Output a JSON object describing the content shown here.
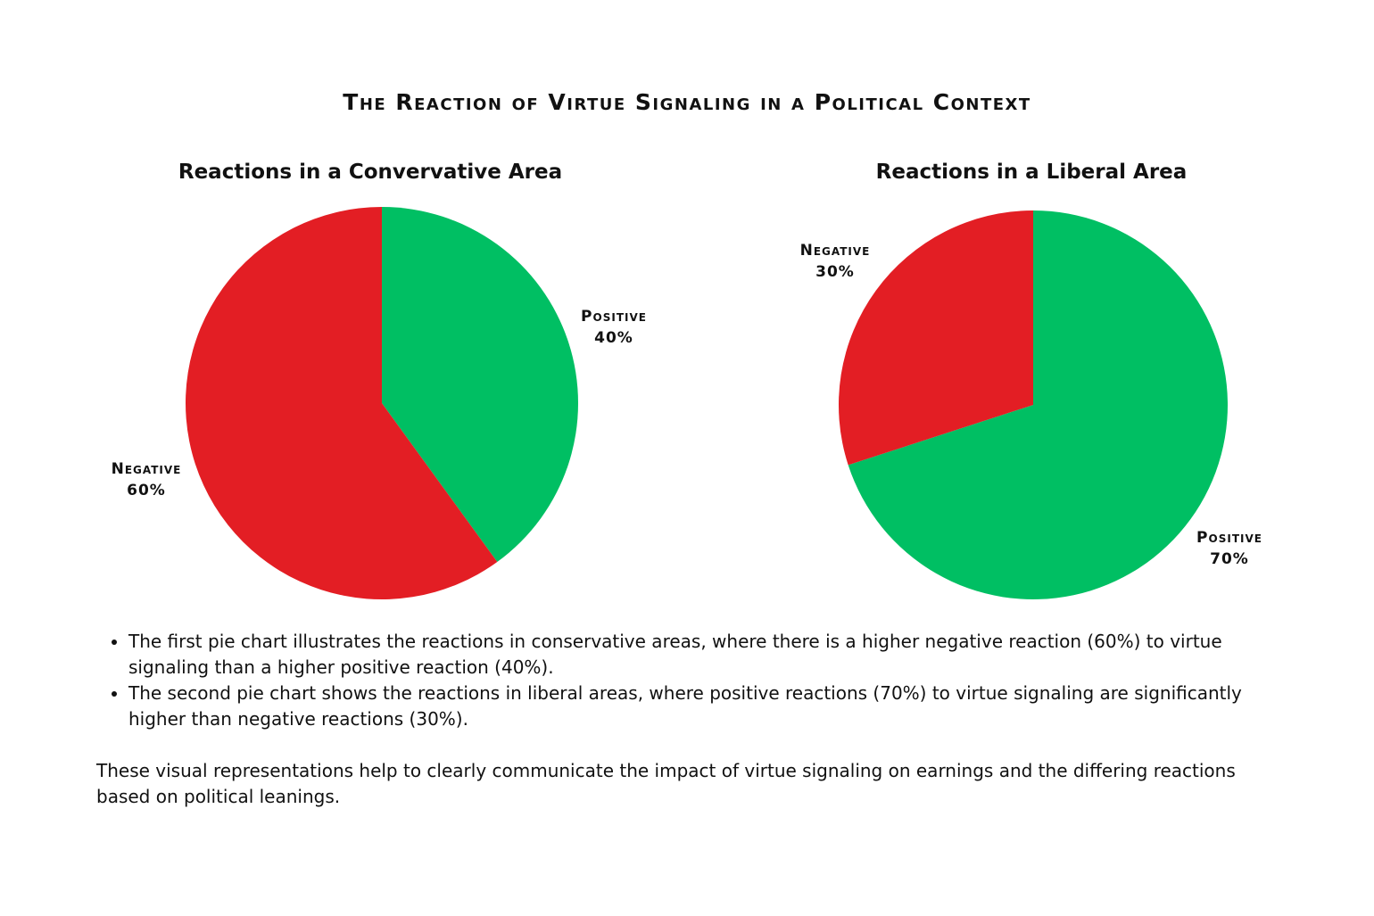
{
  "title": "The Reaction of Virtue Signaling in a Political Context",
  "colors": {
    "positive": "#00BF63",
    "negative": "#E31E24"
  },
  "chart_data": [
    {
      "type": "pie",
      "title": "Reactions in a Convervative Area",
      "categories": [
        "Positive",
        "Negative"
      ],
      "values": [
        40,
        60
      ],
      "unit": "%",
      "labels": [
        {
          "name": "Positive",
          "value": "40%"
        },
        {
          "name": "Negative",
          "value": "60%"
        }
      ]
    },
    {
      "type": "pie",
      "title": "Reactions in a Liberal Area",
      "categories": [
        "Positive",
        "Negative"
      ],
      "values": [
        70,
        30
      ],
      "unit": "%",
      "labels": [
        {
          "name": "Positive",
          "value": "70%"
        },
        {
          "name": "Negative",
          "value": "30%"
        }
      ]
    }
  ],
  "bullets": [
    "The first pie chart illustrates the reactions in conservative areas, where there is a higher negative reaction (60%) to virtue signaling than a higher positive reaction (40%).",
    "The second pie chart shows the reactions in liberal areas, where positive reactions (70%) to virtue signaling are significantly higher than negative reactions (30%)."
  ],
  "conclusion": "These visual representations help to clearly communicate the impact of virtue signaling on earnings and the differing reactions based on political leanings."
}
